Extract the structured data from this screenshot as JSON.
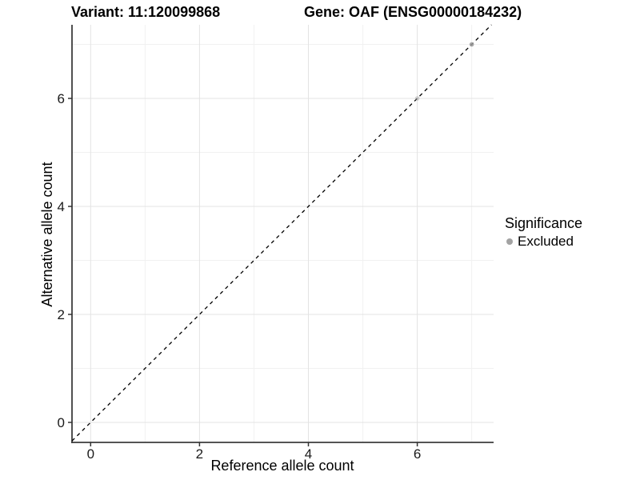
{
  "titles": {
    "variant": "Variant: 11:120099868",
    "gene": "Gene: OAF (ENSG00000184232)"
  },
  "chart_data": {
    "type": "scatter",
    "title_left": "Variant: 11:120099868",
    "title_right": "Gene: OAF (ENSG00000184232)",
    "xlabel": "Reference allele count",
    "ylabel": "Alternative allele count",
    "x_ticks": [
      0,
      2,
      4,
      6
    ],
    "y_ticks": [
      0,
      2,
      4,
      6
    ],
    "xlim": [
      -0.35,
      7.35
    ],
    "ylim": [
      -0.37,
      7.36
    ],
    "grid": {
      "major": true,
      "minor": true,
      "major_color": "#e3e3e3",
      "minor_color": "#f1f1f1"
    },
    "axis_line_color": "#3c3c3c",
    "tick_color": "#333333",
    "tick_label_color": "#1a1a1a",
    "reference_line": {
      "type": "identity",
      "style": "dashed",
      "color": "#000000"
    },
    "series": [
      {
        "name": "Excluded",
        "color": "#999999",
        "points": [
          {
            "x": 6,
            "y": 6,
            "alpha": 0.45
          },
          {
            "x": 7,
            "y": 7,
            "alpha": 0.85
          }
        ]
      }
    ],
    "legend": {
      "title": "Significance",
      "position": "right",
      "entries": [
        {
          "label": "Excluded",
          "color": "#999999",
          "marker": "circle"
        }
      ]
    }
  }
}
